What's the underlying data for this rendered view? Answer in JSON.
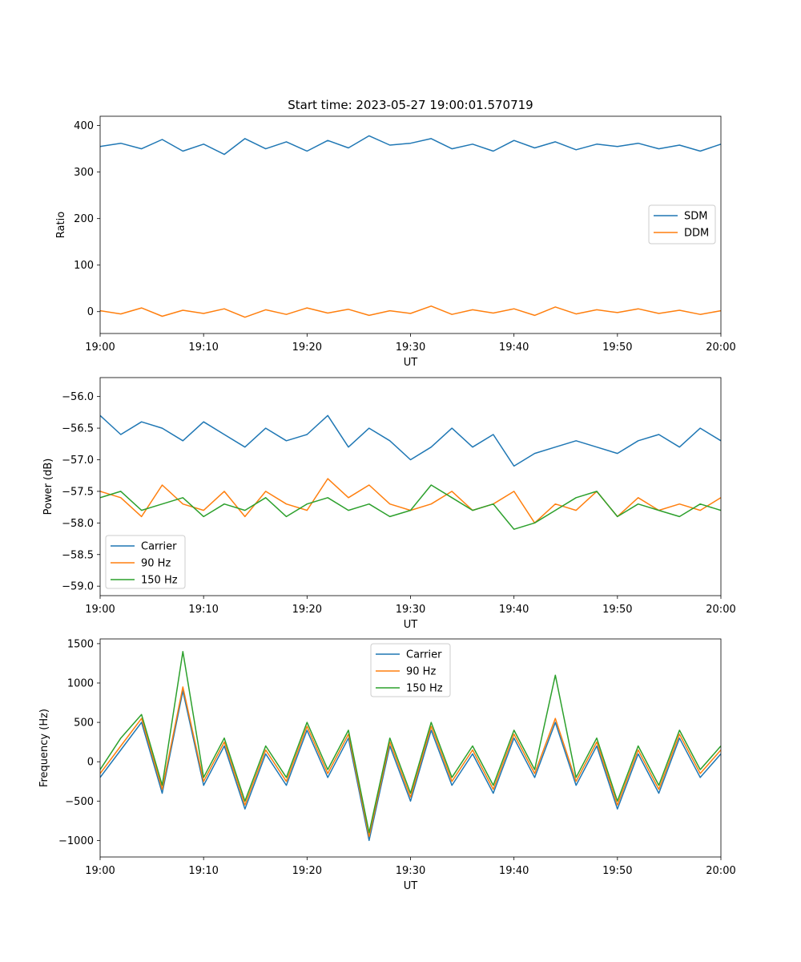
{
  "figure_title": "Start time: 2023-05-27 19:00:01.570719",
  "colors": {
    "blue": "#1f77b4",
    "orange": "#ff7f0e",
    "green": "#2ca02c"
  },
  "chart_data": [
    {
      "type": "line",
      "xlabel": "UT",
      "ylabel": "Ratio",
      "xlim": [
        "19:00",
        "20:00"
      ],
      "xticks": [
        "19:00",
        "19:10",
        "19:20",
        "19:30",
        "19:40",
        "19:50",
        "20:00"
      ],
      "ylim": [
        -47,
        420
      ],
      "yticks": [
        0,
        100,
        200,
        300,
        400
      ],
      "grid": false,
      "legend": "center-right",
      "series": [
        {
          "name": "SDM",
          "color": "#1f77b4",
          "x": [
            "19:00",
            "19:02",
            "19:04",
            "19:06",
            "19:08",
            "19:10",
            "19:12",
            "19:14",
            "19:16",
            "19:18",
            "19:20",
            "19:22",
            "19:24",
            "19:26",
            "19:28",
            "19:30",
            "19:32",
            "19:34",
            "19:36",
            "19:38",
            "19:40",
            "19:42",
            "19:44",
            "19:46",
            "19:48",
            "19:50",
            "19:52",
            "19:54",
            "19:56",
            "19:58",
            "20:00"
          ],
          "values": [
            355,
            362,
            350,
            370,
            345,
            360,
            338,
            372,
            350,
            365,
            345,
            368,
            352,
            378,
            358,
            362,
            372,
            350,
            360,
            345,
            368,
            352,
            365,
            348,
            360,
            355,
            362,
            350,
            358,
            345,
            360
          ]
        },
        {
          "name": "DDM",
          "color": "#ff7f0e",
          "x": [
            "19:00",
            "19:02",
            "19:04",
            "19:06",
            "19:08",
            "19:10",
            "19:12",
            "19:14",
            "19:16",
            "19:18",
            "19:20",
            "19:22",
            "19:24",
            "19:26",
            "19:28",
            "19:30",
            "19:32",
            "19:34",
            "19:36",
            "19:38",
            "19:40",
            "19:42",
            "19:44",
            "19:46",
            "19:48",
            "19:50",
            "19:52",
            "19:54",
            "19:56",
            "19:58",
            "20:00"
          ],
          "values": [
            2,
            -5,
            8,
            -10,
            3,
            -4,
            6,
            -12,
            4,
            -6,
            8,
            -3,
            5,
            -8,
            2,
            -4,
            12,
            -6,
            4,
            -3,
            6,
            -8,
            10,
            -5,
            4,
            -2,
            6,
            -4,
            3,
            -6,
            2
          ]
        }
      ]
    },
    {
      "type": "line",
      "xlabel": "UT",
      "ylabel": "Power (dB)",
      "xlim": [
        "19:00",
        "20:00"
      ],
      "xticks": [
        "19:00",
        "19:10",
        "19:20",
        "19:30",
        "19:40",
        "19:50",
        "20:00"
      ],
      "ylim": [
        -59.15,
        -55.7
      ],
      "yticks": [
        -56.0,
        -56.5,
        -57.0,
        -57.5,
        -58.0,
        -58.5,
        -59.0
      ],
      "ytick_labels": [
        "−56.0",
        "−56.5",
        "−57.0",
        "−57.5",
        "−58.0",
        "−58.5",
        "−59.0"
      ],
      "grid": false,
      "legend": "lower-left",
      "series": [
        {
          "name": "Carrier",
          "color": "#1f77b4",
          "x": [
            "19:00",
            "19:02",
            "19:04",
            "19:06",
            "19:08",
            "19:10",
            "19:12",
            "19:14",
            "19:16",
            "19:18",
            "19:20",
            "19:22",
            "19:24",
            "19:26",
            "19:28",
            "19:30",
            "19:32",
            "19:34",
            "19:36",
            "19:38",
            "19:40",
            "19:42",
            "19:44",
            "19:46",
            "19:48",
            "19:50",
            "19:52",
            "19:54",
            "19:56",
            "19:58",
            "20:00"
          ],
          "values": [
            -56.3,
            -56.6,
            -56.4,
            -56.5,
            -56.7,
            -56.4,
            -56.6,
            -56.8,
            -56.5,
            -56.7,
            -56.6,
            -56.3,
            -56.8,
            -56.5,
            -56.7,
            -57.0,
            -56.8,
            -56.5,
            -56.8,
            -56.6,
            -57.1,
            -56.9,
            -56.8,
            -56.7,
            -56.8,
            -56.9,
            -56.7,
            -56.6,
            -56.8,
            -56.5,
            -56.7
          ]
        },
        {
          "name": "90 Hz",
          "color": "#ff7f0e",
          "x": [
            "19:00",
            "19:02",
            "19:04",
            "19:06",
            "19:08",
            "19:10",
            "19:12",
            "19:14",
            "19:16",
            "19:18",
            "19:20",
            "19:22",
            "19:24",
            "19:26",
            "19:28",
            "19:30",
            "19:32",
            "19:34",
            "19:36",
            "19:38",
            "19:40",
            "19:42",
            "19:44",
            "19:46",
            "19:48",
            "19:50",
            "19:52",
            "19:54",
            "19:56",
            "19:58",
            "20:00"
          ],
          "values": [
            -57.5,
            -57.6,
            -57.9,
            -57.4,
            -57.7,
            -57.8,
            -57.5,
            -57.9,
            -57.5,
            -57.7,
            -57.8,
            -57.3,
            -57.6,
            -57.4,
            -57.7,
            -57.8,
            -57.7,
            -57.5,
            -57.8,
            -57.7,
            -57.5,
            -58.0,
            -57.7,
            -57.8,
            -57.5,
            -57.9,
            -57.6,
            -57.8,
            -57.7,
            -57.8,
            -57.6
          ]
        },
        {
          "name": "150 Hz",
          "color": "#2ca02c",
          "x": [
            "19:00",
            "19:02",
            "19:04",
            "19:06",
            "19:08",
            "19:10",
            "19:12",
            "19:14",
            "19:16",
            "19:18",
            "19:20",
            "19:22",
            "19:24",
            "19:26",
            "19:28",
            "19:30",
            "19:32",
            "19:34",
            "19:36",
            "19:38",
            "19:40",
            "19:42",
            "19:44",
            "19:46",
            "19:48",
            "19:50",
            "19:52",
            "19:54",
            "19:56",
            "19:58",
            "20:00"
          ],
          "values": [
            -57.6,
            -57.5,
            -57.8,
            -57.7,
            -57.6,
            -57.9,
            -57.7,
            -57.8,
            -57.6,
            -57.9,
            -57.7,
            -57.6,
            -57.8,
            -57.7,
            -57.9,
            -57.8,
            -57.4,
            -57.6,
            -57.8,
            -57.7,
            -58.1,
            -58.0,
            -57.8,
            -57.6,
            -57.5,
            -57.9,
            -57.7,
            -57.8,
            -57.9,
            -57.7,
            -57.8
          ]
        }
      ]
    },
    {
      "type": "line",
      "xlabel": "UT",
      "ylabel": "Frequency (Hz)",
      "xlim": [
        "19:00",
        "20:00"
      ],
      "xticks": [
        "19:00",
        "19:10",
        "19:20",
        "19:30",
        "19:40",
        "19:50",
        "20:00"
      ],
      "ylim": [
        -1210,
        1560
      ],
      "yticks": [
        1500,
        1000,
        500,
        0,
        -500,
        -1000
      ],
      "ytick_labels": [
        "1500",
        "1000",
        "500",
        "0",
        "−500",
        "−1000"
      ],
      "grid": false,
      "legend": "top-center",
      "series": [
        {
          "name": "Carrier",
          "color": "#1f77b4",
          "x": [
            "19:00",
            "19:02",
            "19:04",
            "19:06",
            "19:08",
            "19:10",
            "19:12",
            "19:14",
            "19:16",
            "19:18",
            "19:20",
            "19:22",
            "19:24",
            "19:26",
            "19:28",
            "19:30",
            "19:32",
            "19:34",
            "19:36",
            "19:38",
            "19:40",
            "19:42",
            "19:44",
            "19:46",
            "19:48",
            "19:50",
            "19:52",
            "19:54",
            "19:56",
            "19:58",
            "20:00"
          ],
          "values": [
            -200,
            150,
            500,
            -400,
            900,
            -300,
            200,
            -600,
            100,
            -300,
            400,
            -200,
            300,
            -1000,
            200,
            -500,
            400,
            -300,
            100,
            -400,
            300,
            -200,
            500,
            -300,
            200,
            -600,
            100,
            -400,
            300,
            -200,
            100
          ]
        },
        {
          "name": "90 Hz",
          "color": "#ff7f0e",
          "x": [
            "19:00",
            "19:02",
            "19:04",
            "19:06",
            "19:08",
            "19:10",
            "19:12",
            "19:14",
            "19:16",
            "19:18",
            "19:20",
            "19:22",
            "19:24",
            "19:26",
            "19:28",
            "19:30",
            "19:32",
            "19:34",
            "19:36",
            "19:38",
            "19:40",
            "19:42",
            "19:44",
            "19:46",
            "19:48",
            "19:50",
            "19:52",
            "19:54",
            "19:56",
            "19:58",
            "20:00"
          ],
          "values": [
            -150,
            200,
            550,
            -350,
            950,
            -250,
            250,
            -550,
            150,
            -250,
            450,
            -150,
            350,
            -950,
            250,
            -450,
            450,
            -250,
            150,
            -350,
            350,
            -150,
            550,
            -250,
            250,
            -550,
            150,
            -350,
            350,
            -150,
            150
          ]
        },
        {
          "name": "150 Hz",
          "color": "#2ca02c",
          "x": [
            "19:00",
            "19:02",
            "19:04",
            "19:06",
            "19:08",
            "19:10",
            "19:12",
            "19:14",
            "19:16",
            "19:18",
            "19:20",
            "19:22",
            "19:24",
            "19:26",
            "19:28",
            "19:30",
            "19:32",
            "19:34",
            "19:36",
            "19:38",
            "19:40",
            "19:42",
            "19:44",
            "19:46",
            "19:48",
            "19:50",
            "19:52",
            "19:54",
            "19:56",
            "19:58",
            "20:00"
          ],
          "values": [
            -100,
            300,
            600,
            -300,
            1400,
            -200,
            300,
            -500,
            200,
            -200,
            500,
            -100,
            400,
            -900,
            300,
            -400,
            500,
            -200,
            200,
            -300,
            400,
            -100,
            1100,
            -200,
            300,
            -500,
            200,
            -300,
            400,
            -100,
            200
          ]
        }
      ]
    }
  ]
}
